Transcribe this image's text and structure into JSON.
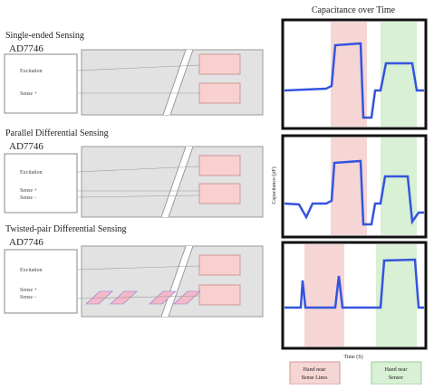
{
  "sections": [
    {
      "title": "Single-ended Sensing",
      "chip": "AD7746",
      "pins": [
        "Excitation",
        "Sense +"
      ]
    },
    {
      "title": "Parallel Differential Sensing",
      "chip": "AD7746",
      "pins": [
        "Excitation",
        "Sense +",
        "Sense −"
      ]
    },
    {
      "title": "Twisted-pair Differential Sensing",
      "chip": "AD7746",
      "pins": [
        "Excitation",
        "Sense +",
        "Sense −"
      ]
    }
  ],
  "plots": {
    "title": "Capacitance over Time",
    "y_label": "Capacitance (pF)",
    "x_label": "Time (S)"
  },
  "legend": [
    {
      "lines": [
        "Hand near",
        "Sense Lines"
      ]
    },
    {
      "lines": [
        "Hand near",
        "Sensor"
      ]
    }
  ]
}
